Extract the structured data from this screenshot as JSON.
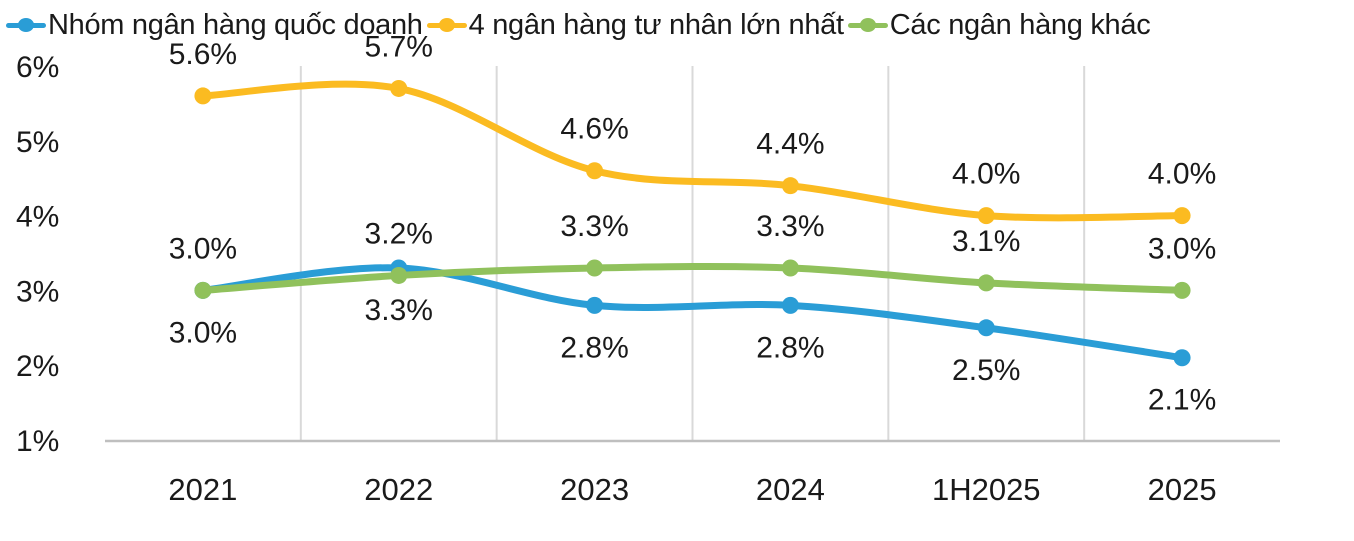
{
  "chart_data": {
    "type": "line",
    "x": [
      "2021",
      "2022",
      "2023",
      "2024",
      "1H2025",
      "2025"
    ],
    "series": [
      {
        "name": "Nhóm ngân hàng quốc doanh",
        "color": "#2A9DD6",
        "values": [
          3.0,
          3.3,
          2.8,
          2.8,
          2.5,
          2.1
        ],
        "labels": [
          "3.0%",
          "3.3%",
          "2.8%",
          "2.8%",
          "2.5%",
          "2.1%"
        ],
        "label_position": "below"
      },
      {
        "name": "4 ngân hàng tư nhân lớn nhất",
        "color": "#FBBB21",
        "values": [
          5.6,
          5.7,
          4.6,
          4.4,
          4.0,
          4.0
        ],
        "labels": [
          "5.6%",
          "5.7%",
          "4.6%",
          "4.4%",
          "4.0%",
          "4.0%"
        ],
        "label_position": "above"
      },
      {
        "name": "Các ngân hàng khác",
        "color": "#90C15C",
        "values": [
          3.0,
          3.2,
          3.3,
          3.3,
          3.1,
          3.0
        ],
        "labels": [
          "3.0%",
          "3.2%",
          "3.3%",
          "3.3%",
          "3.1%",
          "3.0%"
        ],
        "label_position": "above"
      }
    ],
    "y_ticks": [
      {
        "label": "6%",
        "value": 6
      },
      {
        "label": "5%",
        "value": 5
      },
      {
        "label": "4%",
        "value": 4
      },
      {
        "label": "3%",
        "value": 3
      },
      {
        "label": "2%",
        "value": 2
      },
      {
        "label": "1%",
        "value": 1
      }
    ],
    "ylim": [
      1,
      6
    ],
    "grid": "vertical category separators",
    "legend_position": "top-left",
    "colors": {
      "text": "#1a1a1a",
      "gridline": "#D9D9D9",
      "axis_line": "#BFBFBF",
      "background": "#ffffff"
    }
  }
}
